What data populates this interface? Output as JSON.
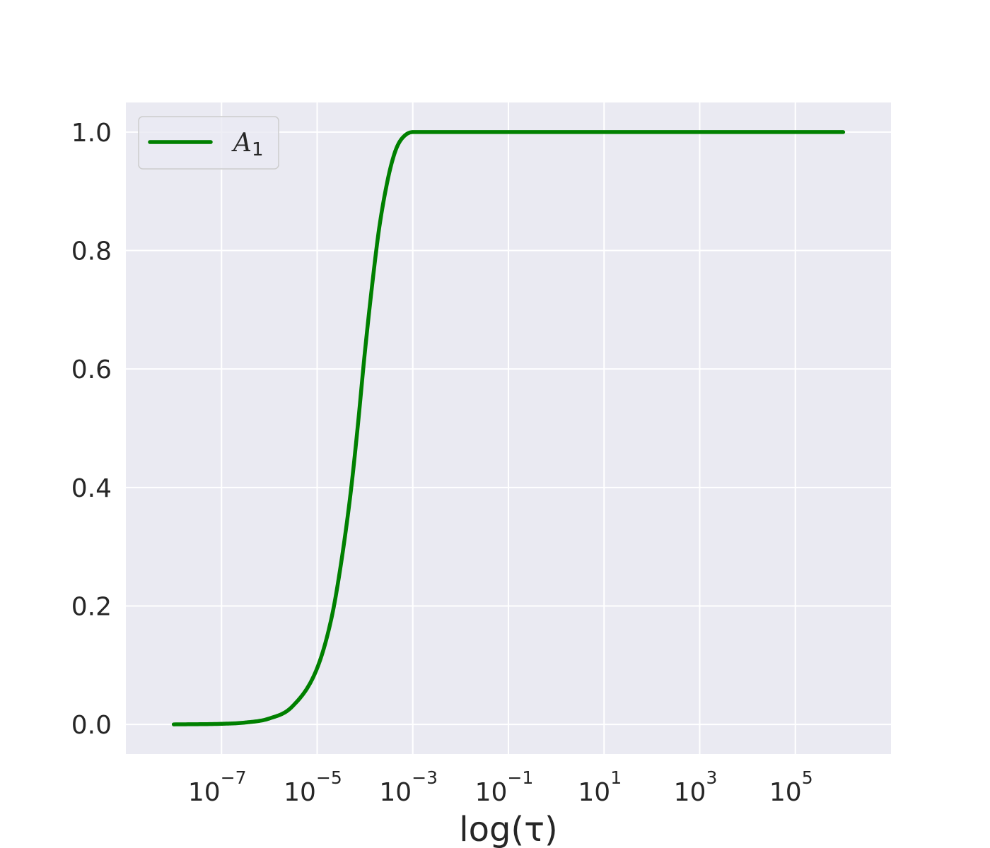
{
  "chart_data": {
    "type": "line",
    "title": "",
    "xlabel": "log(τ)",
    "ylabel": "",
    "xscale": "log",
    "xlim": [
      1e-09,
      10000000.0
    ],
    "ylim": [
      -0.05,
      1.05
    ],
    "x_ticks": [
      {
        "base": "10",
        "exp": "−7",
        "value": 1e-07
      },
      {
        "base": "10",
        "exp": "−5",
        "value": 1e-05
      },
      {
        "base": "10",
        "exp": "−3",
        "value": 0.001
      },
      {
        "base": "10",
        "exp": "−1",
        "value": 0.1
      },
      {
        "base": "10",
        "exp": "1",
        "value": 10
      },
      {
        "base": "10",
        "exp": "3",
        "value": 1000
      },
      {
        "base": "10",
        "exp": "5",
        "value": 100000
      }
    ],
    "y_ticks": [
      "0.0",
      "0.2",
      "0.4",
      "0.6",
      "0.8",
      "1.0"
    ],
    "grid": true,
    "legend_position": "top-left",
    "background": "#eaeaf2",
    "series": [
      {
        "name": "A",
        "name_subscript": "1",
        "color": "#008000",
        "x": [
          1e-08,
          1e-07,
          3e-07,
          1e-06,
          3e-06,
          1e-05,
          2e-05,
          3e-05,
          5e-05,
          7e-05,
          0.0001,
          0.00015,
          0.0002,
          0.0003,
          0.0004,
          0.0005,
          0.0007,
          0.001,
          0.01,
          1,
          100,
          10000.0,
          1000000.0
        ],
        "y": [
          0.0,
          0.001,
          0.003,
          0.01,
          0.03,
          0.095,
          0.18,
          0.26,
          0.39,
          0.5,
          0.63,
          0.76,
          0.84,
          0.92,
          0.96,
          0.98,
          0.995,
          1.0,
          1.0,
          1.0,
          1.0,
          1.0,
          1.0
        ]
      }
    ]
  }
}
